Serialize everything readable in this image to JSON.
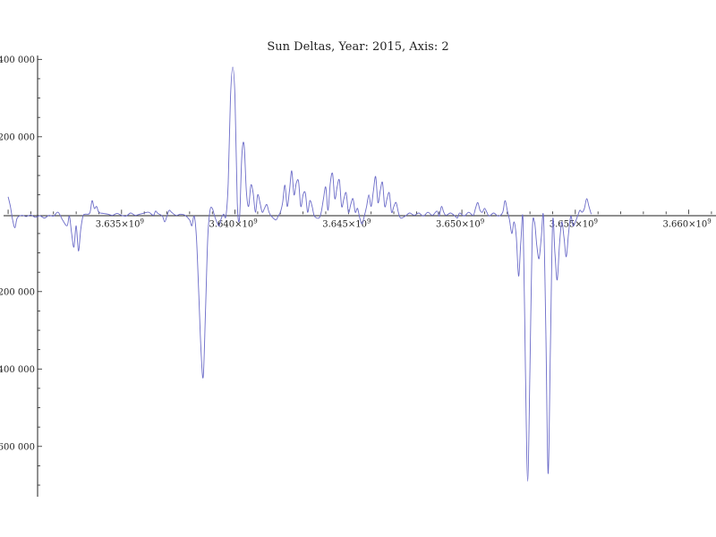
{
  "chart_data": {
    "type": "line",
    "title": "Sun Deltas, Year: 2015, Axis: 2",
    "xlabel": "",
    "ylabel": "",
    "xlim": [
      3629800000.0,
      3661200000.0
    ],
    "ylim": [
      -730000,
      410000
    ],
    "grid": false,
    "x_ticks": [
      {
        "value": 3635000000.0,
        "label": "3.635×10",
        "exp": "9"
      },
      {
        "value": 3640000000.0,
        "label": "3.640×10",
        "exp": "9"
      },
      {
        "value": 3645000000.0,
        "label": "3.645×10",
        "exp": "9"
      },
      {
        "value": 3650000000.0,
        "label": "3.650×10",
        "exp": "9"
      },
      {
        "value": 3655000000.0,
        "label": "3.655×10",
        "exp": "9"
      },
      {
        "value": 3660000000.0,
        "label": "3.660×10",
        "exp": "9"
      }
    ],
    "y_ticks": [
      {
        "value": 400000,
        "label": "400 000"
      },
      {
        "value": 200000,
        "label": "200 000"
      },
      {
        "value": -200000,
        "label": "−200 000"
      },
      {
        "value": -400000,
        "label": "−400 000"
      },
      {
        "value": -600000,
        "label": "−600 000"
      }
    ],
    "series": [
      {
        "color": "#6b6bc8",
        "points": [
          [
            3630000000.0,
            45000
          ],
          [
            3630100000.0,
            20000
          ],
          [
            3630200000.0,
            -15000
          ],
          [
            3630300000.0,
            -35000
          ],
          [
            3630400000.0,
            -10000
          ],
          [
            3630600000.0,
            -3000
          ],
          [
            3630800000.0,
            -6000
          ],
          [
            3631000000.0,
            -2000
          ],
          [
            3631200000.0,
            -8000
          ],
          [
            3631400000.0,
            -4000
          ],
          [
            3631600000.0,
            -10000
          ],
          [
            3631800000.0,
            -3000
          ],
          [
            3632000000.0,
            -5000
          ],
          [
            3632200000.0,
            5000
          ],
          [
            3632400000.0,
            -15000
          ],
          [
            3632600000.0,
            -30000
          ],
          [
            3632700000.0,
            -5000
          ],
          [
            3632800000.0,
            -50000
          ],
          [
            3632900000.0,
            -85000
          ],
          [
            3633000000.0,
            -30000
          ],
          [
            3633100000.0,
            -95000
          ],
          [
            3633200000.0,
            -40000
          ],
          [
            3633300000.0,
            -5000
          ],
          [
            3633400000.0,
            0
          ],
          [
            3633600000.0,
            3000
          ],
          [
            3633700000.0,
            35000
          ],
          [
            3633800000.0,
            15000
          ],
          [
            3633900000.0,
            20000
          ],
          [
            3634000000.0,
            5000
          ],
          [
            3634200000.0,
            2000
          ],
          [
            3634400000.0,
            0
          ],
          [
            3634600000.0,
            -3000
          ],
          [
            3634800000.0,
            2000
          ],
          [
            3635000000.0,
            -3000
          ],
          [
            3635200000.0,
            -5000
          ],
          [
            3635400000.0,
            3000
          ],
          [
            3635600000.0,
            -3000
          ],
          [
            3635800000.0,
            0
          ],
          [
            3636000000.0,
            3000
          ],
          [
            3636200000.0,
            5000
          ],
          [
            3636400000.0,
            -3000
          ],
          [
            3636500000.0,
            8000
          ],
          [
            3636600000.0,
            2000
          ],
          [
            3636800000.0,
            -5000
          ],
          [
            3636900000.0,
            -20000
          ],
          [
            3637000000.0,
            -5000
          ],
          [
            3637100000.0,
            10000
          ],
          [
            3637200000.0,
            5000
          ],
          [
            3637400000.0,
            -3000
          ],
          [
            3637600000.0,
            0
          ],
          [
            3637800000.0,
            -3000
          ],
          [
            3638000000.0,
            -15000
          ],
          [
            3638100000.0,
            -30000
          ],
          [
            3638200000.0,
            -5000
          ],
          [
            3638300000.0,
            -60000
          ],
          [
            3638400000.0,
            -200000
          ],
          [
            3638500000.0,
            -350000
          ],
          [
            3638600000.0,
            -420000
          ],
          [
            3638700000.0,
            -250000
          ],
          [
            3638800000.0,
            -60000
          ],
          [
            3638900000.0,
            10000
          ],
          [
            3639000000.0,
            15000
          ],
          [
            3639100000.0,
            -5000
          ],
          [
            3639200000.0,
            -20000
          ],
          [
            3639300000.0,
            -30000
          ],
          [
            3639400000.0,
            -10000
          ],
          [
            3639500000.0,
            0
          ],
          [
            3639600000.0,
            -5000
          ],
          [
            3639700000.0,
            80000
          ],
          [
            3639800000.0,
            300000
          ],
          [
            3639900000.0,
            380000
          ],
          [
            3640000000.0,
            300000
          ],
          [
            3640100000.0,
            30000
          ],
          [
            3640200000.0,
            -10000
          ],
          [
            3640300000.0,
            150000
          ],
          [
            3640400000.0,
            180000
          ],
          [
            3640500000.0,
            60000
          ],
          [
            3640600000.0,
            20000
          ],
          [
            3640700000.0,
            75000
          ],
          [
            3640800000.0,
            55000
          ],
          [
            3640900000.0,
            5000
          ],
          [
            3641000000.0,
            50000
          ],
          [
            3641100000.0,
            30000
          ],
          [
            3641200000.0,
            5000
          ],
          [
            3641300000.0,
            15000
          ],
          [
            3641400000.0,
            25000
          ],
          [
            3641500000.0,
            5000
          ],
          [
            3641600000.0,
            -5000
          ],
          [
            3641800000.0,
            -15000
          ],
          [
            3641900000.0,
            -5000
          ],
          [
            3642000000.0,
            5000
          ],
          [
            3642100000.0,
            30000
          ],
          [
            3642200000.0,
            75000
          ],
          [
            3642300000.0,
            20000
          ],
          [
            3642400000.0,
            60000
          ],
          [
            3642500000.0,
            112000
          ],
          [
            3642600000.0,
            50000
          ],
          [
            3642700000.0,
            80000
          ],
          [
            3642800000.0,
            85000
          ],
          [
            3642900000.0,
            20000
          ],
          [
            3643000000.0,
            50000
          ],
          [
            3643100000.0,
            55000
          ],
          [
            3643200000.0,
            5000
          ],
          [
            3643300000.0,
            35000
          ],
          [
            3643400000.0,
            20000
          ],
          [
            3643500000.0,
            -5000
          ],
          [
            3643700000.0,
            -10000
          ],
          [
            3643800000.0,
            5000
          ],
          [
            3643900000.0,
            40000
          ],
          [
            3644000000.0,
            70000
          ],
          [
            3644100000.0,
            10000
          ],
          [
            3644200000.0,
            80000
          ],
          [
            3644300000.0,
            105000
          ],
          [
            3644400000.0,
            40000
          ],
          [
            3644500000.0,
            70000
          ],
          [
            3644600000.0,
            88000
          ],
          [
            3644700000.0,
            20000
          ],
          [
            3644800000.0,
            40000
          ],
          [
            3644900000.0,
            55000
          ],
          [
            3645000000.0,
            5000
          ],
          [
            3645100000.0,
            25000
          ],
          [
            3645200000.0,
            40000
          ],
          [
            3645300000.0,
            5000
          ],
          [
            3645400000.0,
            15000
          ],
          [
            3645500000.0,
            -10000
          ],
          [
            3645600000.0,
            -25000
          ],
          [
            3645700000.0,
            -5000
          ],
          [
            3645800000.0,
            20000
          ],
          [
            3645900000.0,
            50000
          ],
          [
            3646000000.0,
            20000
          ],
          [
            3646100000.0,
            60000
          ],
          [
            3646200000.0,
            97000
          ],
          [
            3646300000.0,
            30000
          ],
          [
            3646400000.0,
            60000
          ],
          [
            3646500000.0,
            82000
          ],
          [
            3646600000.0,
            20000
          ],
          [
            3646700000.0,
            40000
          ],
          [
            3646800000.0,
            55000
          ],
          [
            3646900000.0,
            5000
          ],
          [
            3647000000.0,
            20000
          ],
          [
            3647100000.0,
            30000
          ],
          [
            3647200000.0,
            5000
          ],
          [
            3647300000.0,
            -10000
          ],
          [
            3647500000.0,
            -5000
          ],
          [
            3647700000.0,
            3000
          ],
          [
            3647900000.0,
            -3000
          ],
          [
            3648100000.0,
            3000
          ],
          [
            3648300000.0,
            -5000
          ],
          [
            3648500000.0,
            5000
          ],
          [
            3648700000.0,
            -3000
          ],
          [
            3648900000.0,
            8000
          ],
          [
            3649000000.0,
            -5000
          ],
          [
            3649100000.0,
            20000
          ],
          [
            3649200000.0,
            5000
          ],
          [
            3649300000.0,
            -3000
          ],
          [
            3649500000.0,
            3000
          ],
          [
            3649700000.0,
            -5000
          ],
          [
            3649800000.0,
            -10000
          ],
          [
            3649900000.0,
            3000
          ],
          [
            3650100000.0,
            -5000
          ],
          [
            3650300000.0,
            5000
          ],
          [
            3650500000.0,
            -3000
          ],
          [
            3650600000.0,
            15000
          ],
          [
            3650700000.0,
            30000
          ],
          [
            3650800000.0,
            10000
          ],
          [
            3650900000.0,
            5000
          ],
          [
            3651000000.0,
            15000
          ],
          [
            3651100000.0,
            5000
          ],
          [
            3651200000.0,
            -5000
          ],
          [
            3651400000.0,
            3000
          ],
          [
            3651600000.0,
            -5000
          ],
          [
            3651800000.0,
            5000
          ],
          [
            3651900000.0,
            35000
          ],
          [
            3652000000.0,
            10000
          ],
          [
            3652100000.0,
            -15000
          ],
          [
            3652200000.0,
            -50000
          ],
          [
            3652300000.0,
            -20000
          ],
          [
            3652400000.0,
            -60000
          ],
          [
            3652500000.0,
            -160000
          ],
          [
            3652600000.0,
            -70000
          ],
          [
            3652700000.0,
            -20000
          ],
          [
            3652800000.0,
            -400000
          ],
          [
            3652900000.0,
            -690000
          ],
          [
            3653000000.0,
            -400000
          ],
          [
            3653100000.0,
            -50000
          ],
          [
            3653200000.0,
            -20000
          ],
          [
            3653300000.0,
            -80000
          ],
          [
            3653400000.0,
            -115000
          ],
          [
            3653500000.0,
            -60000
          ],
          [
            3653600000.0,
            -10000
          ],
          [
            3653700000.0,
            -300000
          ],
          [
            3653800000.0,
            -670000
          ],
          [
            3653900000.0,
            -350000
          ],
          [
            3654000000.0,
            -20000
          ],
          [
            3654100000.0,
            -100000
          ],
          [
            3654200000.0,
            -170000
          ],
          [
            3654300000.0,
            -80000
          ],
          [
            3654400000.0,
            -20000
          ],
          [
            3654500000.0,
            -60000
          ],
          [
            3654600000.0,
            -110000
          ],
          [
            3654700000.0,
            -50000
          ],
          [
            3654800000.0,
            -5000
          ],
          [
            3654900000.0,
            -30000
          ],
          [
            3655000000.0,
            -20000
          ],
          [
            3655100000.0,
            -5000
          ],
          [
            3655200000.0,
            10000
          ],
          [
            3655300000.0,
            5000
          ],
          [
            3655400000.0,
            15000
          ],
          [
            3655500000.0,
            40000
          ],
          [
            3655600000.0,
            20000
          ],
          [
            3655700000.0,
            0
          ]
        ]
      }
    ]
  }
}
